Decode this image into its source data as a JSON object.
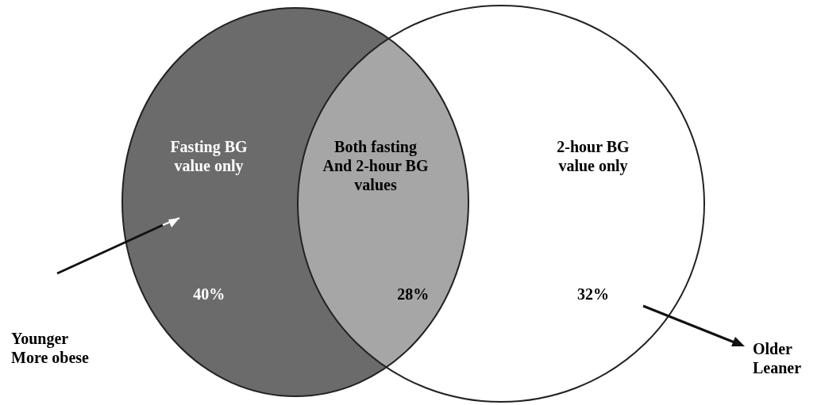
{
  "chart_data": {
    "type": "other",
    "categories": [
      "Fasting BG\nvalue only",
      "Both fasting\nAnd 2-hour BG\nvalues",
      "2-hour BG\nvalue only"
    ],
    "values": [
      40,
      28,
      32
    ],
    "value_labels": [
      "40%",
      "28%",
      "32%"
    ],
    "colors": [
      "#6b6b6b",
      "#a6a6a6",
      "#ffffff"
    ],
    "annotations": [
      "Younger\nMore obese",
      "Older\nLeaner"
    ]
  }
}
